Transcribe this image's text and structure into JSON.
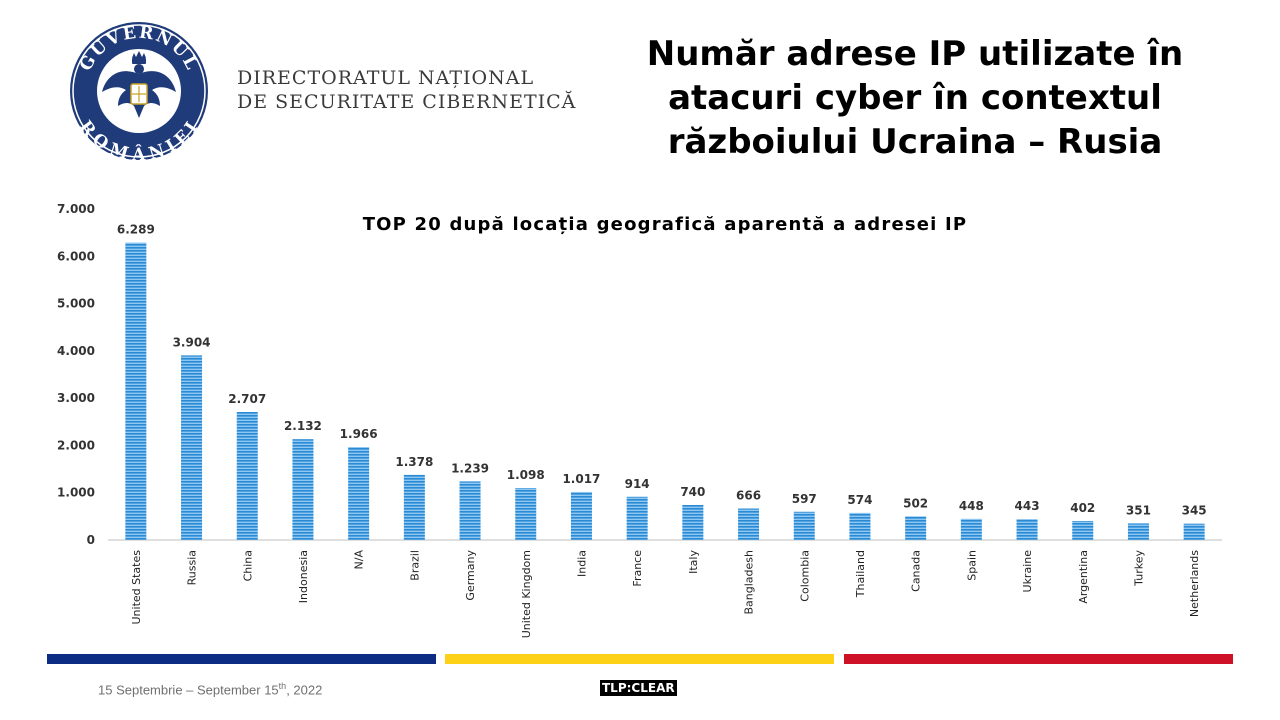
{
  "header": {
    "logo_top_text": "GUVERNUL",
    "logo_bottom_text": "ROMÂNIEI",
    "org_line1": "DIRECTORATUL NAȚIONAL",
    "org_line2": "DE SECURITATE CIBERNETICĂ",
    "title_lines": [
      "Număr adrese IP utilizate în",
      "atacuri cyber în contextul",
      "războiului Ucraina – Rusia"
    ]
  },
  "chart_data": {
    "type": "bar",
    "title": "TOP 20 după locația geografică aparentă a adresei IP",
    "xlabel": "",
    "ylabel": "",
    "ylim": [
      0,
      7000
    ],
    "yticks": [
      0,
      1000,
      2000,
      3000,
      4000,
      5000,
      6000,
      7000
    ],
    "ytick_labels": [
      "0",
      "1.000",
      "2.000",
      "3.000",
      "4.000",
      "5.000",
      "6.000",
      "7.000"
    ],
    "categories": [
      "United States",
      "Russia",
      "China",
      "Indonesia",
      "N/A",
      "Brazil",
      "Germany",
      "United Kingdom",
      "India",
      "France",
      "Italy",
      "Bangladesh",
      "Colombia",
      "Thailand",
      "Canada",
      "Spain",
      "Ukraine",
      "Argentina",
      "Turkey",
      "Netherlands"
    ],
    "values": [
      6289,
      3904,
      2707,
      2132,
      1966,
      1378,
      1239,
      1098,
      1017,
      914,
      740,
      666,
      597,
      574,
      502,
      448,
      443,
      402,
      351,
      345
    ],
    "value_labels": [
      "6.289",
      "3.904",
      "2.707",
      "2.132",
      "1.966",
      "1.378",
      "1.239",
      "1.098",
      "1.017",
      "914",
      "740",
      "666",
      "597",
      "574",
      "502",
      "448",
      "443",
      "402",
      "351",
      "345"
    ],
    "bar_color": "#2e8fd6",
    "grid": false,
    "legend": "none"
  },
  "footer": {
    "date_prefix": "15 Septembrie – September 15",
    "date_sup": "th",
    "date_suffix": ", 2022",
    "tlp": "TLP:CLEAR"
  },
  "colors": {
    "band_blue": "#0c2c84",
    "band_yellow": "#fcd116",
    "band_red": "#ce1126",
    "emblem_navy": "#1f3b7a"
  }
}
